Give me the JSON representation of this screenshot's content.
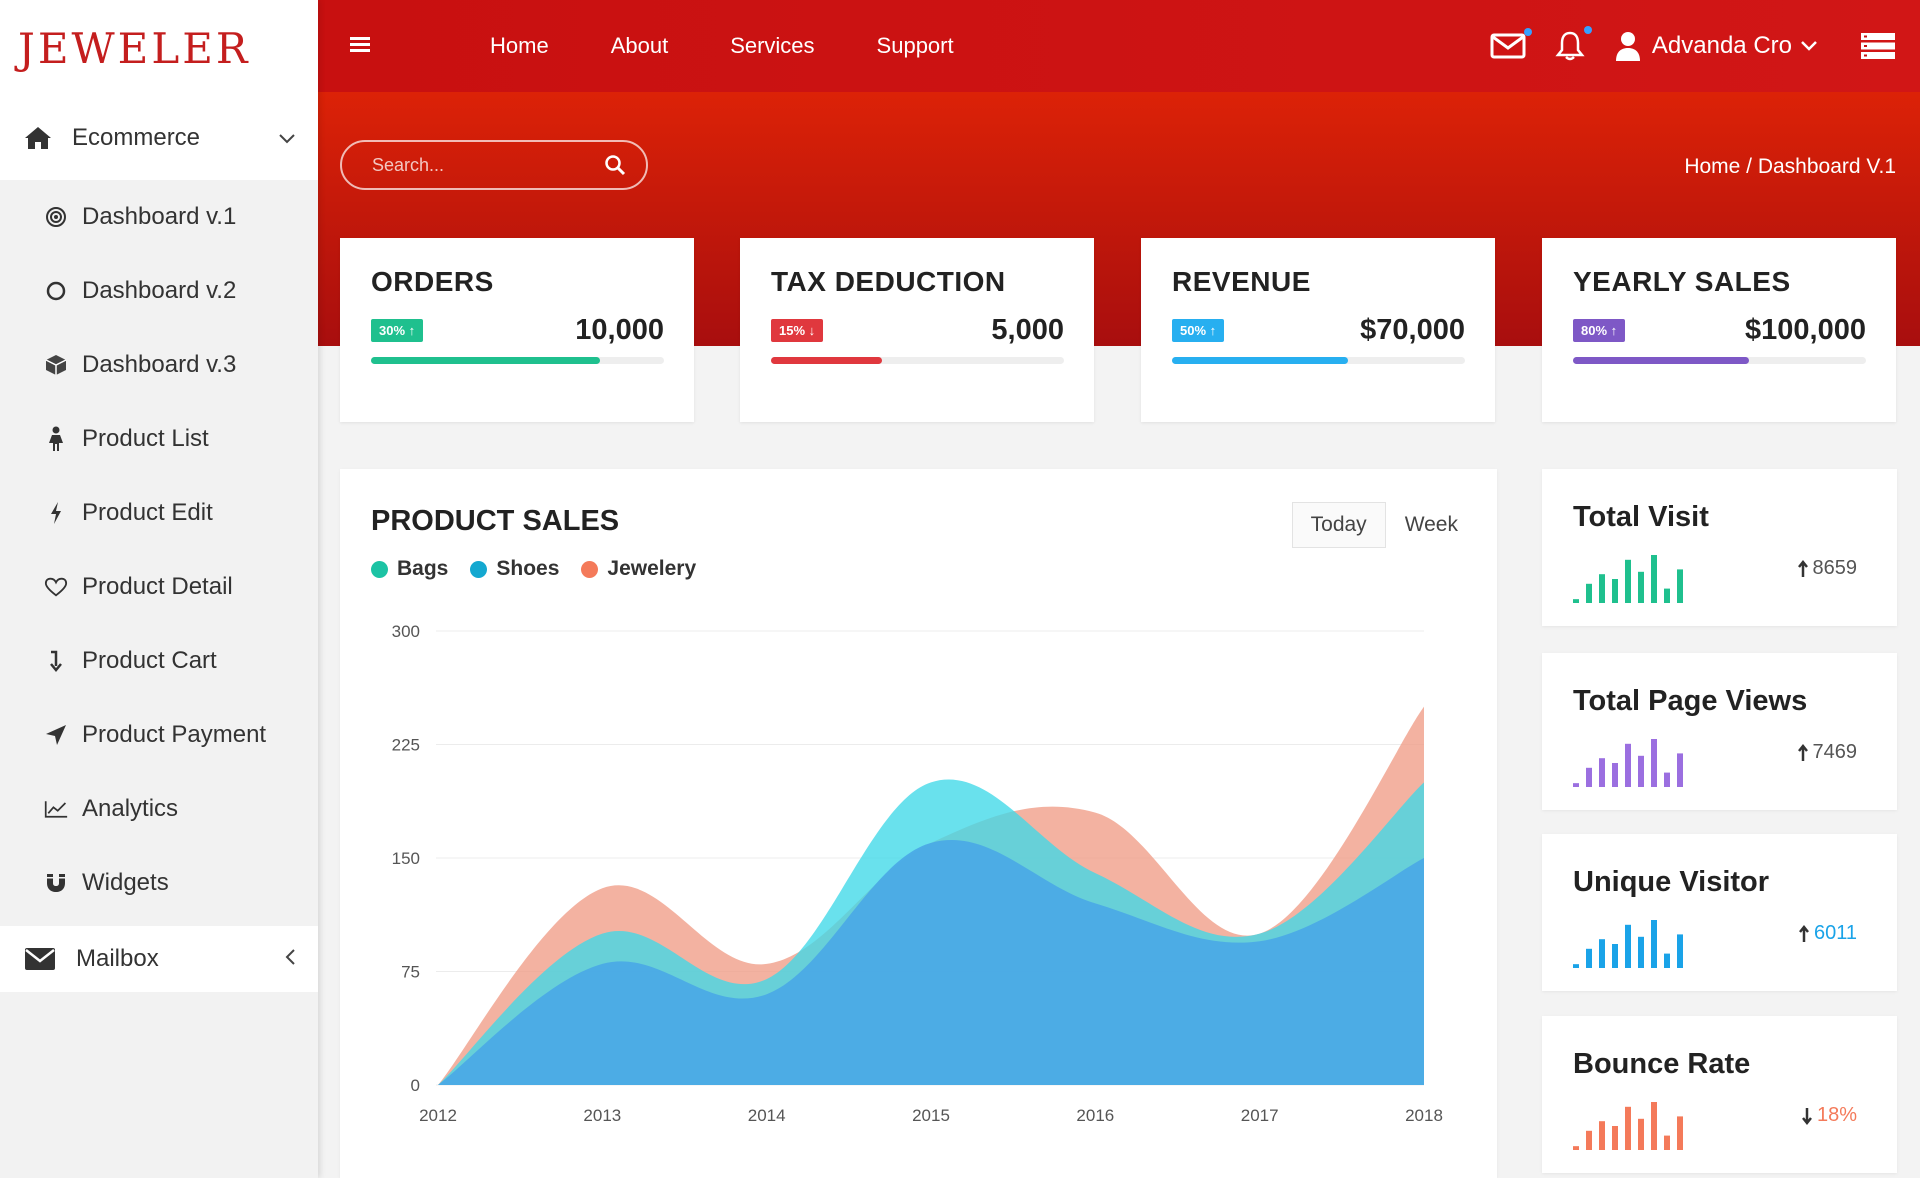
{
  "brand": "JEWELER",
  "sidebar": {
    "section": "Ecommerce",
    "items": [
      {
        "label": "Dashboard v.1",
        "icon": "target-icon"
      },
      {
        "label": "Dashboard v.2",
        "icon": "circle-icon"
      },
      {
        "label": "Dashboard v.3",
        "icon": "cube-icon"
      },
      {
        "label": "Product List",
        "icon": "female-icon"
      },
      {
        "label": "Product Edit",
        "icon": "bolt-icon"
      },
      {
        "label": "Product Detail",
        "icon": "heart-icon"
      },
      {
        "label": "Product Cart",
        "icon": "arrow-down-icon"
      },
      {
        "label": "Product Payment",
        "icon": "send-icon"
      },
      {
        "label": "Analytics",
        "icon": "line-chart-icon"
      },
      {
        "label": "Widgets",
        "icon": "magnet-icon"
      }
    ],
    "mailbox": "Mailbox"
  },
  "nav": {
    "items": [
      "Home",
      "About",
      "Services",
      "Support"
    ]
  },
  "user": {
    "name": "Advanda Cro"
  },
  "search": {
    "placeholder": "Search..."
  },
  "breadcrumb": "Home / Dashboard V.1",
  "stats": [
    {
      "title": "ORDERS",
      "badge": "30%",
      "trend": "up",
      "value": "10,000",
      "color": "#1fc08e",
      "progress": 0.78
    },
    {
      "title": "TAX DEDUCTION",
      "badge": "15%",
      "trend": "down",
      "value": "5,000",
      "color": "#e0383e",
      "progress": 0.38
    },
    {
      "title": "REVENUE",
      "badge": "50%",
      "trend": "up",
      "value": "$70,000",
      "color": "#27aff0",
      "progress": 0.6
    },
    {
      "title": "YEARLY SALES",
      "badge": "80%",
      "trend": "up",
      "value": "$100,000",
      "color": "#7e58c6",
      "progress": 0.6
    }
  ],
  "sales": {
    "title": "PRODUCT SALES",
    "tabs": [
      "Today",
      "Week"
    ],
    "legend": [
      {
        "name": "Bags",
        "color": "#1cc3a4"
      },
      {
        "name": "Shoes",
        "color": "#14a8d0"
      },
      {
        "name": "Jewelery",
        "color": "#f47a5a"
      }
    ]
  },
  "chart_data": {
    "type": "area",
    "x": [
      "2012",
      "2013",
      "2014",
      "2015",
      "2016",
      "2017",
      "2018"
    ],
    "ylim": [
      0,
      300
    ],
    "yticks": [
      "300",
      "225",
      "150",
      "75",
      "0"
    ],
    "series": [
      {
        "name": "Jewelery",
        "values": [
          0,
          130,
          80,
          160,
          180,
          100,
          250
        ],
        "color": "#f09c86"
      },
      {
        "name": "Bags",
        "values": [
          0,
          100,
          70,
          200,
          140,
          100,
          200
        ],
        "color": "#3fd8e8"
      },
      {
        "name": "Shoes",
        "values": [
          0,
          80,
          60,
          160,
          120,
          95,
          150
        ],
        "color": "#4aa8e6"
      }
    ],
    "grid": true
  },
  "minis": [
    {
      "title": "Total Visit",
      "value": "8659",
      "trend": "up",
      "color": "#1fc08e",
      "bars": [
        0.08,
        0.4,
        0.6,
        0.5,
        0.9,
        0.65,
        1.0,
        0.3,
        0.7
      ]
    },
    {
      "title": "Total Page Views",
      "value": "7469",
      "trend": "up",
      "color": "#9b6fe0",
      "bars": [
        0.08,
        0.4,
        0.6,
        0.5,
        0.9,
        0.65,
        1.0,
        0.3,
        0.7
      ]
    },
    {
      "title": "Unique Visitor",
      "value": "6011",
      "trend": "up",
      "color": "#1aa3e8",
      "bars": [
        0.08,
        0.4,
        0.6,
        0.5,
        0.9,
        0.65,
        1.0,
        0.3,
        0.7
      ]
    },
    {
      "title": "Bounce Rate",
      "value": "18%",
      "trend": "down",
      "color": "#f47a5a",
      "bars": [
        0.08,
        0.4,
        0.6,
        0.5,
        0.9,
        0.65,
        1.0,
        0.3,
        0.7
      ]
    }
  ]
}
